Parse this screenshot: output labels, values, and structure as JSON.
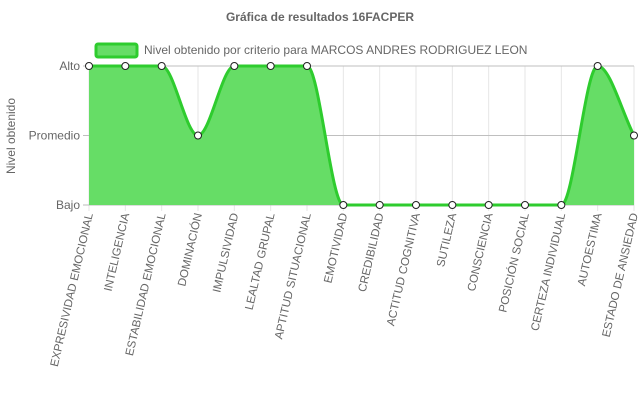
{
  "chart_data": {
    "type": "area",
    "title": "Gráfica de resultados 16FACPER",
    "xlabel": "",
    "ylabel": "Nivel obtenido",
    "y_levels": [
      "Bajo",
      "Promedio",
      "Alto"
    ],
    "categories": [
      "EXPRESIVIDAD EMOCIONAL",
      "INTELIGENCIA",
      "ESTABILIDAD EMOCIONAL",
      "DOMINACIÓN",
      "IMPULSIVIDAD",
      "LEALTAD GRUPAL",
      "APTITUD SITUACIONAL",
      "EMOTIVIDAD",
      "CREDIBILIDAD",
      "ACTITUD COGNITIVA",
      "SUTILEZA",
      "CONSCIENCIA",
      "POSICIÓN SOCIAL",
      "CERTEZA INDIVIDUAL",
      "AUTOESTIMA",
      "ESTADO DE ANSIEDAD"
    ],
    "series": [
      {
        "name": "Nivel obtenido por criterio para MARCOS ANDRES RODRIGUEZ LEON",
        "values": [
          "Alto",
          "Alto",
          "Alto",
          "Promedio",
          "Alto",
          "Alto",
          "Alto",
          "Bajo",
          "Bajo",
          "Bajo",
          "Bajo",
          "Bajo",
          "Bajo",
          "Bajo",
          "Alto",
          "Promedio"
        ]
      }
    ],
    "legend_position": "top",
    "grid": true,
    "colors": {
      "fill": "#66dd66",
      "line": "#2ecc2e",
      "grid": "#e6e6e6",
      "axis": "#bbbbbb",
      "text": "#666666"
    }
  }
}
